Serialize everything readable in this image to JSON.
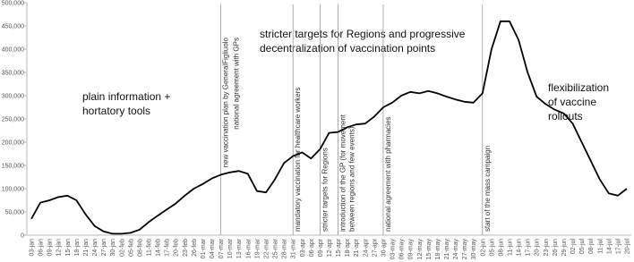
{
  "chart_data": {
    "type": "line",
    "categories": [
      "03-jan",
      "06-jan",
      "09-jan",
      "12-jan",
      "15-jan",
      "18-jan",
      "21-jan",
      "24-jan",
      "27-jan",
      "30-jan",
      "02-feb",
      "05-feb",
      "08-feb",
      "11-feb",
      "14-feb",
      "17-feb",
      "20-feb",
      "23-feb",
      "26-feb",
      "01-mar",
      "04-mar",
      "07-mar",
      "10-mar",
      "13-mar",
      "16-mar",
      "19-mar",
      "22-mar",
      "25-mar",
      "28-mar",
      "31-mar",
      "03-apr",
      "06-apr",
      "09-apr",
      "12-apr",
      "15-apr",
      "18-apr",
      "21-apr",
      "24-apr",
      "27-apr",
      "30-apr",
      "03-may",
      "06-may",
      "09-may",
      "12-may",
      "15-may",
      "18-may",
      "21-may",
      "24-may",
      "27-may",
      "30-may",
      "02-jun",
      "05-jun",
      "08-jun",
      "11-jun",
      "14-jun",
      "17-jun",
      "20-jun",
      "23-jun",
      "26-jun",
      "29-jun",
      "02-jul",
      "05-jul",
      "08-jul",
      "11-jul",
      "14-jul",
      "17-jul",
      "20-jul"
    ],
    "values": [
      35000,
      70000,
      75000,
      82000,
      85000,
      75000,
      45000,
      20000,
      8000,
      3000,
      3000,
      5000,
      12000,
      28000,
      42000,
      55000,
      68000,
      85000,
      100000,
      110000,
      122000,
      130000,
      135000,
      138000,
      132000,
      95000,
      92000,
      120000,
      155000,
      170000,
      178000,
      165000,
      185000,
      220000,
      222000,
      232000,
      238000,
      240000,
      255000,
      275000,
      285000,
      300000,
      308000,
      305000,
      310000,
      305000,
      298000,
      292000,
      287000,
      285000,
      305000,
      400000,
      460000,
      460000,
      420000,
      350000,
      298000,
      282000,
      270000,
      262000,
      240000,
      200000,
      160000,
      120000,
      90000,
      85000,
      100000
    ],
    "color": "#000000",
    "ylim": [
      0,
      500000
    ],
    "yticks": [
      0,
      {
        "value": 50000,
        "label": "50,000"
      },
      {
        "value": 100000,
        "label": "100,000"
      },
      {
        "value": 150000,
        "label": "150,000"
      },
      {
        "value": 200000,
        "label": "200,000"
      },
      {
        "value": 250000,
        "label": "250,000"
      },
      {
        "value": 300000,
        "label": "300,000"
      },
      {
        "value": 350000,
        "label": "350,000"
      },
      {
        "value": 400000,
        "label": "400,000"
      },
      {
        "value": 450000,
        "label": "450,000"
      },
      {
        "value": 500000,
        "label": "500,000"
      }
    ],
    "grid": false,
    "events": [
      {
        "x": "07-mar",
        "labels": [
          "new vaccination plan by GeneralFigliuolo",
          "national agreement with GPs"
        ]
      },
      {
        "x": "31-mar",
        "labels": [
          "mandatory vaccination for healthcare workers"
        ]
      },
      {
        "x": "09-apr",
        "labels": [
          "stricter targets for Regions"
        ]
      },
      {
        "x": "15-apr",
        "labels": [
          "introduction of the GP (for movement",
          "between regions and few events)"
        ]
      },
      {
        "x": "30-apr",
        "labels": [
          "national agreement with pharmacies"
        ]
      },
      {
        "x": "02-jun",
        "labels": [
          "start of the mass campaign"
        ]
      }
    ],
    "phases": [
      {
        "lines": [
          "plain information +",
          "hortatory tools"
        ]
      },
      {
        "lines": [
          "stricter targets for Regions and progressive",
          "decentralization of vaccination points"
        ]
      },
      {
        "lines": [
          "flexibilization",
          "of vaccine",
          "rollouts"
        ]
      }
    ]
  }
}
